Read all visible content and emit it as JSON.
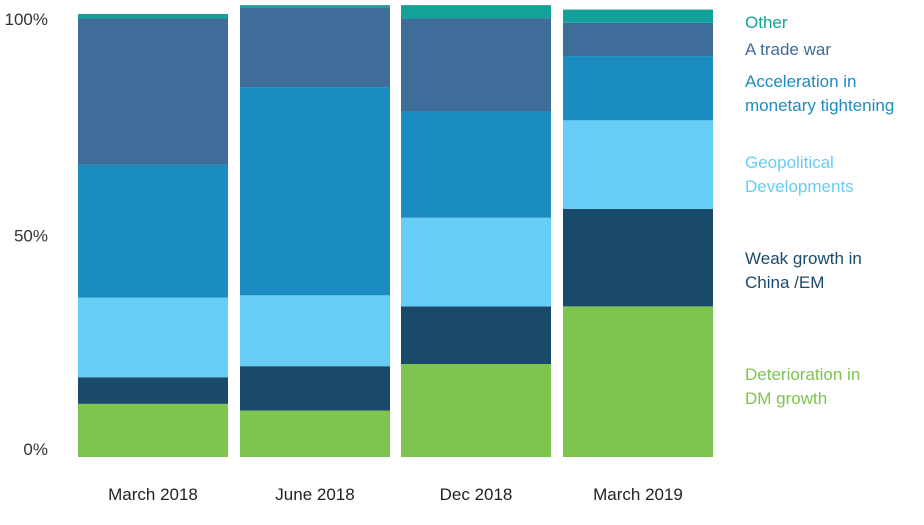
{
  "chart_data": {
    "type": "bar",
    "stacked": true,
    "normalized": true,
    "title": "",
    "xlabel": "",
    "ylabel": "",
    "ylim": [
      0,
      100
    ],
    "ytick_labels": [
      "0%",
      "50%",
      "100%"
    ],
    "ytick_values": [
      0,
      50,
      100
    ],
    "grid": false,
    "legend_position": "right",
    "categories": [
      "March 2018",
      "June 2018",
      "Dec 2018",
      "March 2019"
    ],
    "series": [
      {
        "name": "Deterioration in DM growth",
        "name_lines": [
          "Deterioration in",
          "DM growth"
        ],
        "color": "#80c450",
        "values": [
          12,
          10.5,
          21,
          34
        ]
      },
      {
        "name": "Weak growth in China /EM",
        "name_lines": [
          "Weak growth in",
          "China /EM"
        ],
        "color": "#1a4a6a",
        "values": [
          6,
          10,
          13,
          22
        ]
      },
      {
        "name": "Geopolitical Developments",
        "name_lines": [
          "Geopolitical",
          "Developments"
        ],
        "color": "#66cdf4",
        "values": [
          18,
          16,
          20,
          20
        ]
      },
      {
        "name": "Acceleration in monetary tightening",
        "name_lines": [
          "Acceleration in",
          "monetary tightening"
        ],
        "color": "#1b8cbf",
        "values": [
          30,
          47,
          24,
          14.5
        ]
      },
      {
        "name": "A trade war",
        "name_lines": [
          "A trade war"
        ],
        "color": "#3e6d9a",
        "values": [
          33,
          18,
          21,
          7.5
        ]
      },
      {
        "name": "Other",
        "name_lines": [
          "Other"
        ],
        "color": "#12a29a",
        "values": [
          1,
          0.5,
          3,
          3
        ]
      }
    ]
  }
}
